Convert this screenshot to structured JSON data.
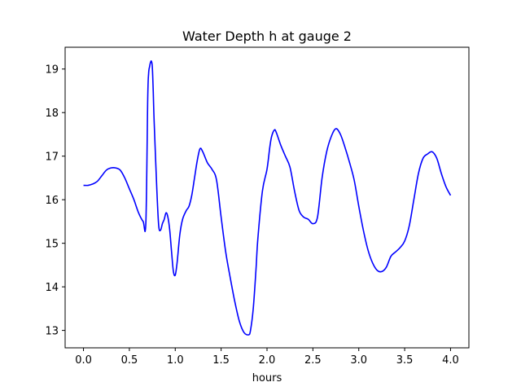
{
  "chart_data": {
    "type": "line",
    "title": "Water Depth h at gauge 2",
    "xlabel": "hours",
    "ylabel": "",
    "xlim": [
      -0.2,
      4.2
    ],
    "ylim": [
      12.6,
      19.5
    ],
    "xticks": [
      0.0,
      0.5,
      1.0,
      1.5,
      2.0,
      2.5,
      3.0,
      3.5,
      4.0
    ],
    "xtick_labels": [
      "0.0",
      "0.5",
      "1.0",
      "1.5",
      "2.0",
      "2.5",
      "3.0",
      "3.5",
      "4.0"
    ],
    "yticks": [
      13,
      14,
      15,
      16,
      17,
      18,
      19
    ],
    "ytick_labels": [
      "13",
      "14",
      "15",
      "16",
      "17",
      "18",
      "19"
    ],
    "grid": false,
    "series": [
      {
        "color": "#0000ff",
        "x": [
          0.0,
          0.05,
          0.1,
          0.15,
          0.2,
          0.25,
          0.3,
          0.35,
          0.4,
          0.45,
          0.5,
          0.55,
          0.6,
          0.65,
          0.68,
          0.7,
          0.71,
          0.72,
          0.73,
          0.74,
          0.75,
          0.76,
          0.77,
          0.8,
          0.82,
          0.84,
          0.86,
          0.88,
          0.9,
          0.92,
          0.94,
          0.96,
          0.98,
          1.0,
          1.02,
          1.05,
          1.08,
          1.12,
          1.15,
          1.18,
          1.21,
          1.24,
          1.27,
          1.3,
          1.35,
          1.4,
          1.45,
          1.5,
          1.55,
          1.6,
          1.65,
          1.7,
          1.75,
          1.8,
          1.82,
          1.85,
          1.88,
          1.9,
          1.95,
          2.0,
          2.03,
          2.05,
          2.08,
          2.1,
          2.15,
          2.2,
          2.25,
          2.3,
          2.35,
          2.4,
          2.45,
          2.5,
          2.55,
          2.6,
          2.65,
          2.7,
          2.75,
          2.8,
          2.85,
          2.9,
          2.95,
          3.0,
          3.05,
          3.1,
          3.15,
          3.2,
          3.25,
          3.3,
          3.35,
          3.4,
          3.45,
          3.5,
          3.55,
          3.6,
          3.65,
          3.7,
          3.75,
          3.8,
          3.85,
          3.9,
          3.95,
          4.0
        ],
        "y": [
          16.33,
          16.33,
          16.36,
          16.42,
          16.55,
          16.68,
          16.73,
          16.73,
          16.68,
          16.5,
          16.25,
          16.0,
          15.7,
          15.5,
          15.48,
          18.3,
          18.9,
          19.05,
          19.15,
          19.18,
          19.05,
          18.5,
          17.8,
          16.2,
          15.4,
          15.3,
          15.45,
          15.55,
          15.7,
          15.6,
          15.3,
          14.8,
          14.35,
          14.27,
          14.55,
          15.2,
          15.55,
          15.75,
          15.85,
          16.1,
          16.5,
          16.9,
          17.17,
          17.1,
          16.85,
          16.7,
          16.45,
          15.6,
          14.8,
          14.2,
          13.65,
          13.2,
          12.95,
          12.9,
          13.0,
          13.5,
          14.4,
          15.1,
          16.2,
          16.7,
          17.2,
          17.45,
          17.6,
          17.55,
          17.25,
          17.0,
          16.75,
          16.2,
          15.75,
          15.6,
          15.55,
          15.45,
          15.6,
          16.5,
          17.1,
          17.45,
          17.63,
          17.5,
          17.2,
          16.85,
          16.45,
          15.85,
          15.3,
          14.85,
          14.55,
          14.38,
          14.35,
          14.45,
          14.7,
          14.8,
          14.9,
          15.05,
          15.4,
          16.0,
          16.6,
          16.95,
          17.05,
          17.1,
          16.95,
          16.6,
          16.3,
          16.1
        ]
      }
    ]
  }
}
